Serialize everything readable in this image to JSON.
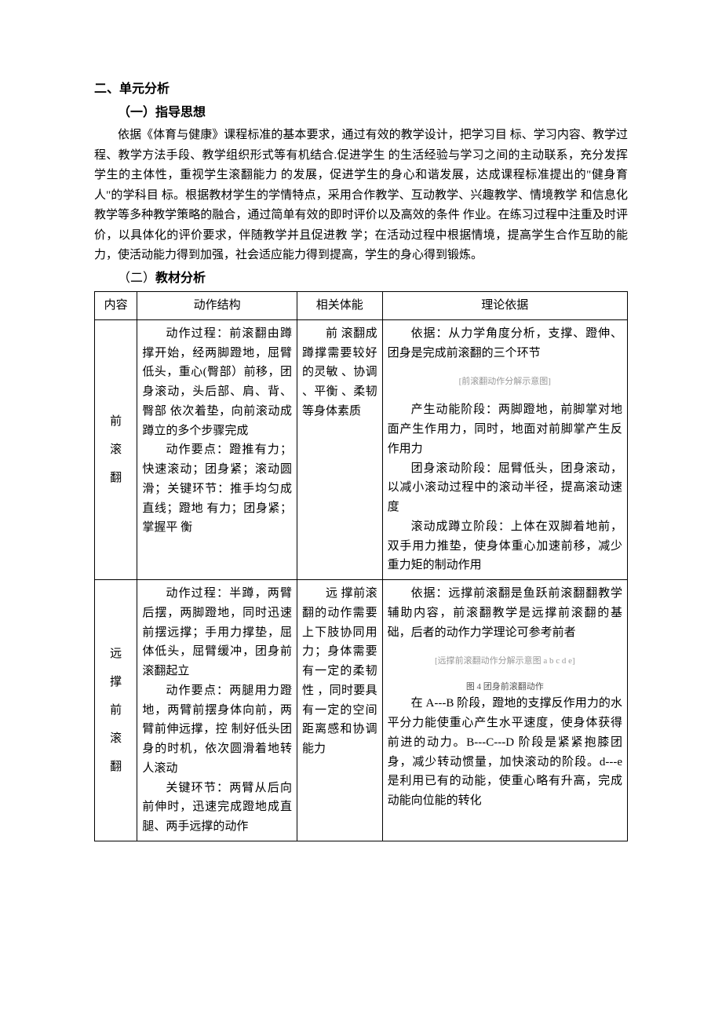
{
  "headings": {
    "main": "二、单元分析",
    "sub1": "（一）指导思想",
    "sub2_prefix": "（二）",
    "sub2_title": "教材分析"
  },
  "paragraph": "依据《体育与健康》课程标准的基本要求，通过有效的教学设计，把学习目 标、学习内容、教学过程、教学方法手段、教学组织形式等有机结合.促进学生 的生活经验与学习之间的主动联系，充分发挥学生的主体性，重视学生滚翻能力 的发展，促进学生的身心和谐发展，达成课程标准提出的\"健身育人\"的学科目 标。根据教材学生的学情特点，采用合作教学、互动教学、兴趣教学、情境教学 和信息化教学等多种教学策略的融合，通过简单有效的即时评价以及高效的条件 作业。在练习过程中注重及时评价，以具体化的评价要求，伴随教学并且促进教 学；在活动过程中根据情境，提高学生合作互助的能力，使活动能力得到加强，社会适应能力得到提高，学生的身心得到锻炼。",
  "table": {
    "headers": {
      "col1": "内容",
      "col2": "动作结构",
      "col3": "相关体能",
      "col4": "理论依据"
    },
    "rows": [
      {
        "label_chars": [
          "前",
          "滚",
          "翻"
        ],
        "structure_p1": "动作过程：前滚翻由蹲撑开始，经两脚蹬地，屈臂低头，重心(臀部）前移，团身滚动，头后部、肩、背、臀部 依次着垫，向前滚动成 蹲立的多个步骤完成",
        "structure_p2": "动作要点：蹬推有力；快速滚动；团身紧；滚动圆滑；关键环节：推手均匀成直线；蹬地 有力；团身紧；掌握平 衡",
        "fitness": "前 滚翻成蹲撑需要较好的灵敏 、协调 、平衡 、柔韧等身体素质",
        "theory_p1": "依据：从力学角度分析，支撑、蹬伸、团身是完成前滚翻的三个环节",
        "theory_diagram": "[前滚翻动作分解示意图]",
        "theory_p2": "产生动能阶段：两脚蹬地，前脚掌对地面产生作用力，同时，地面对前脚掌产生反作用力",
        "theory_p3": "团身滚动阶段：屈臂低头，团身滚动，以减小滚动过程中的滚动半径，提高滚动速度",
        "theory_p4": "滚动成蹲立阶段：上体在双脚着地前，双手用力推垫，使身体重心加速前移，减少重力矩的制动作用"
      },
      {
        "label_chars": [
          "远",
          "撑",
          "前",
          "滚",
          "翻"
        ],
        "structure_p1": "动作过程：半蹲，两臂后摆，两脚蹬地，同时迅速前摆远撑；手用力撑垫，屈体低头，屈臂缓冲，团身前滚翻起立",
        "structure_p2": "动作要点：两腿用力蹬地，两臂前摆身体向前，两臂前伸远撑，控 制好低头团身的时机，依次圆滑着地转人滚动",
        "structure_p3": "关键环节：两臂从后向前伸时，迅速完成蹬地成直腿、两手远撑的动作",
        "fitness": "远 撑前滚翻的动作需要上下肢协同用力；身体需要有一定的柔韧性 ，同时要具有一定的空间距离感和协调能力",
        "theory_p1": "依据：远撑前滚翻是鱼跃前滚翻翻教学辅助内容，前滚翻教学是远撑前滚翻的基础，后者的动作力学理论可参考前者",
        "theory_diagram": "[远撑前滚翻动作分解示意图 a b c d e]",
        "theory_caption": "图 4  团身前滚翻动作",
        "theory_p2": "在 A---B 阶段，蹬地的支撑反作用力的水平分力能使重心产生水平速度，使身体获得前进的动力。B---C---D 阶段是紧紧抱膝团身，减少转动惯量，加快滚动的阶段。d---e 是利用已有的动能，使重心略有升高，完成动能向位能的转化"
      }
    ]
  }
}
